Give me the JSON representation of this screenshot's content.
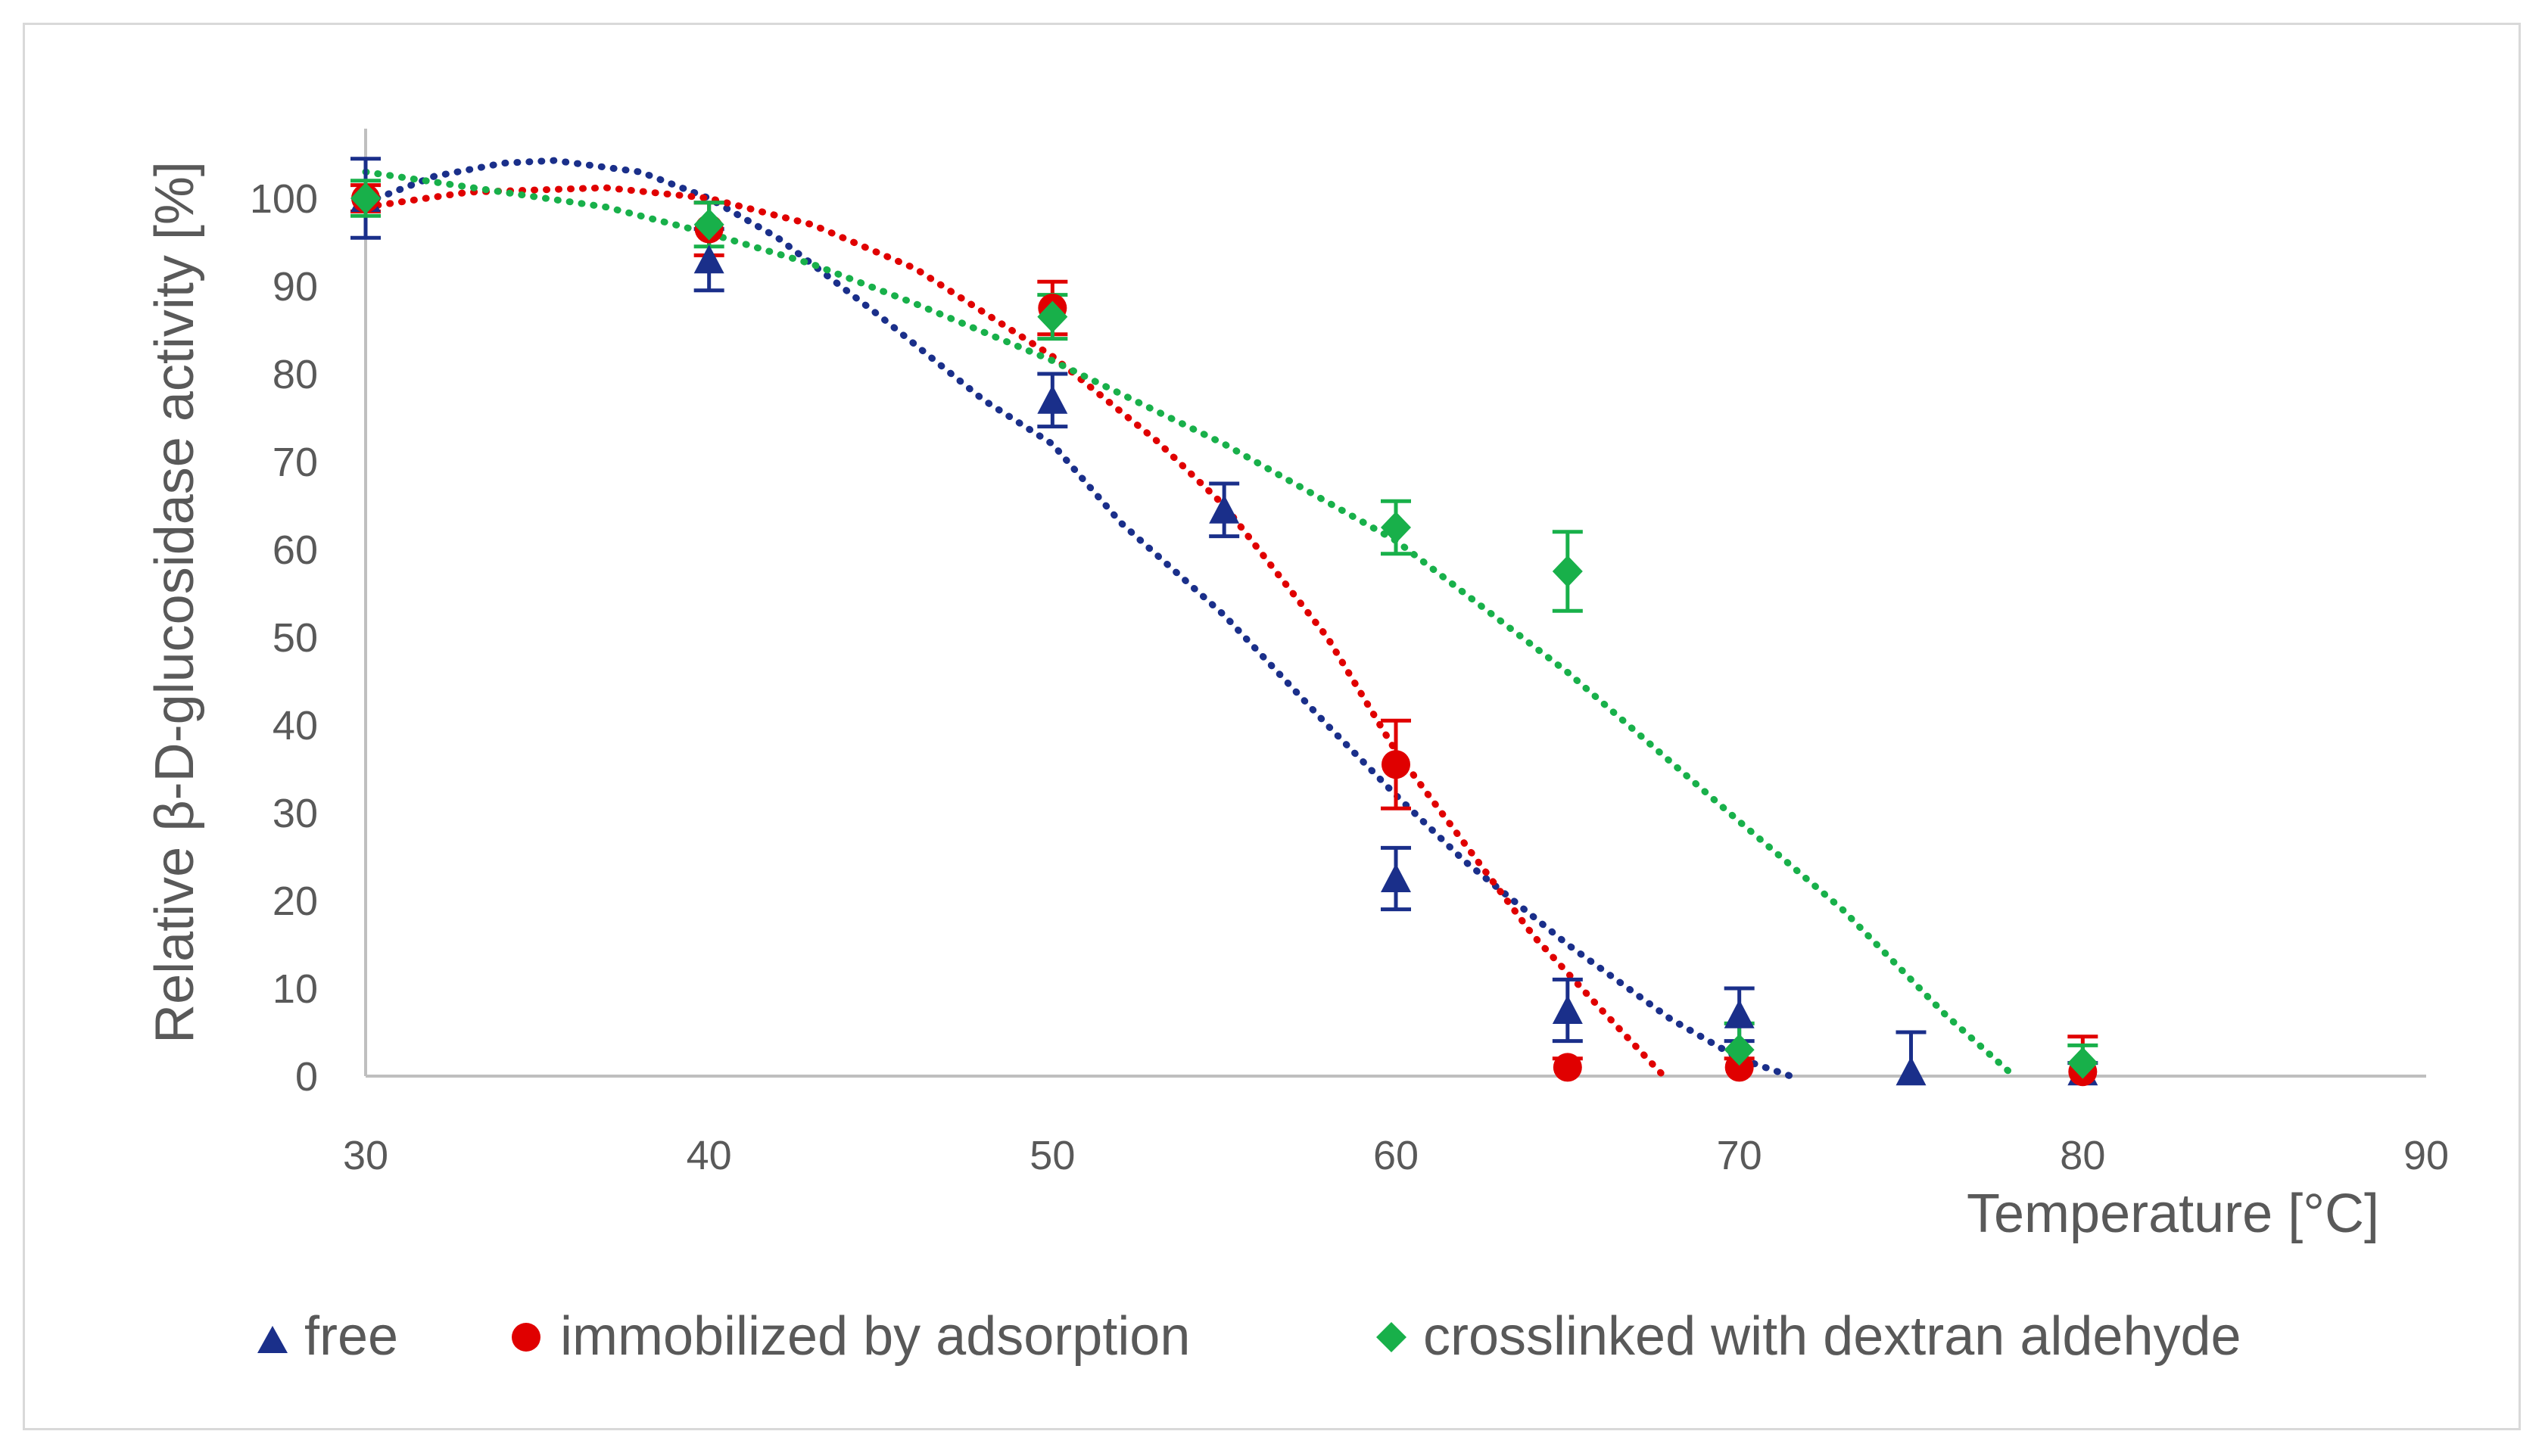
{
  "chart_data": {
    "type": "scatter",
    "title": "",
    "xlabel": "Temperature [°C]",
    "ylabel": "Relative β-D-glucosidase activity [%]",
    "xlim": [
      30,
      90
    ],
    "ylim": [
      0,
      100
    ],
    "x_ticks": [
      30,
      40,
      50,
      60,
      70,
      80,
      90
    ],
    "y_ticks": [
      0,
      10,
      20,
      30,
      40,
      50,
      60,
      70,
      80,
      90,
      100
    ],
    "grid": false,
    "legend_position": "bottom",
    "trendline": "polynomial, dotted",
    "series": [
      {
        "name": "free",
        "color": "#1a2f8a",
        "marker": "triangle",
        "x": [
          30,
          40,
          50,
          55,
          60,
          65,
          70,
          75,
          80
        ],
        "y": [
          100,
          93,
          77,
          64.5,
          22.5,
          7.5,
          7,
          0.5,
          0.5
        ],
        "error": [
          4.5,
          3.5,
          3,
          3,
          3.5,
          3.5,
          3,
          4.5,
          1
        ],
        "trend": [
          [
            30,
            99.5
          ],
          [
            32,
            102.5
          ],
          [
            34,
            104
          ],
          [
            35.5,
            104.3
          ],
          [
            38,
            103
          ],
          [
            40,
            100
          ],
          [
            42,
            95.5
          ],
          [
            45,
            86.5
          ],
          [
            48,
            77
          ],
          [
            50,
            72
          ],
          [
            52,
            63
          ],
          [
            55,
            52.5
          ],
          [
            58,
            40
          ],
          [
            60,
            32
          ],
          [
            62,
            24.5
          ],
          [
            65,
            15
          ],
          [
            68,
            6.5
          ],
          [
            70,
            2
          ],
          [
            71.5,
            0
          ]
        ]
      },
      {
        "name": "immobilized by adsorption",
        "color": "#e00000",
        "marker": "circle",
        "x": [
          30,
          40,
          50,
          60,
          65,
          70,
          80
        ],
        "y": [
          100,
          96.5,
          87.5,
          35.5,
          1,
          1,
          0.5
        ],
        "error": [
          1.5,
          3,
          3,
          5,
          1,
          1,
          4
        ],
        "trend": [
          [
            30,
            99
          ],
          [
            33,
            100.7
          ],
          [
            37,
            101.2
          ],
          [
            40,
            100
          ],
          [
            43,
            97
          ],
          [
            46,
            92
          ],
          [
            50,
            82
          ],
          [
            53,
            72.5
          ],
          [
            55,
            65
          ],
          [
            58,
            50
          ],
          [
            60,
            37
          ],
          [
            62,
            26.5
          ],
          [
            64,
            16
          ],
          [
            66,
            7.5
          ],
          [
            67.8,
            0
          ]
        ]
      },
      {
        "name": "crosslinked with dextran aldehyde",
        "color": "#18b04a",
        "marker": "diamond",
        "x": [
          30,
          40,
          50,
          60,
          65,
          70,
          80
        ],
        "y": [
          100,
          97,
          86.5,
          62.5,
          57.5,
          3,
          1.5
        ],
        "error": [
          2,
          2.5,
          2.5,
          3,
          4.5,
          3,
          2
        ],
        "trend": [
          [
            30,
            103
          ],
          [
            34,
            100.7
          ],
          [
            37,
            99
          ],
          [
            40,
            96
          ],
          [
            43,
            92.5
          ],
          [
            46,
            88
          ],
          [
            50,
            81.5
          ],
          [
            55,
            72
          ],
          [
            60,
            61
          ],
          [
            65,
            46
          ],
          [
            70,
            29
          ],
          [
            73,
            19
          ],
          [
            76,
            7
          ],
          [
            78,
            0
          ]
        ]
      }
    ]
  }
}
